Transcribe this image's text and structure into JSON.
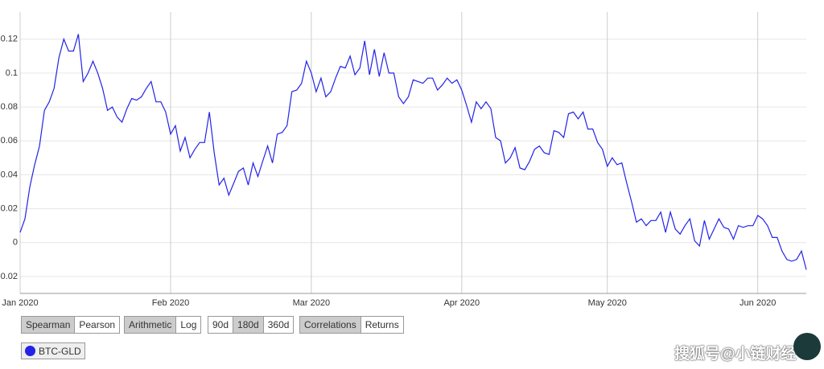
{
  "chart_data": {
    "type": "line",
    "xlim": [
      0,
      162
    ],
    "xticks": [
      {
        "value": 0,
        "label": "Jan 2020"
      },
      {
        "value": 31,
        "label": "Feb 2020"
      },
      {
        "value": 60,
        "label": "Mar 2020"
      },
      {
        "value": 91,
        "label": "Apr 2020"
      },
      {
        "value": 121,
        "label": "May 2020"
      },
      {
        "value": 152,
        "label": "Jun 2020"
      }
    ],
    "ylim": [
      -0.03,
      0.136
    ],
    "yticks": [
      -0.02,
      0,
      0.02,
      0.04,
      0.06,
      0.08,
      0.1,
      0.12
    ],
    "grid": true,
    "series": [
      {
        "name": "BTC-GLD",
        "color": "#2323e6",
        "values": [
          0.006,
          0.014,
          0.033,
          0.046,
          0.057,
          0.078,
          0.083,
          0.091,
          0.109,
          0.12,
          0.113,
          0.113,
          0.123,
          0.095,
          0.1,
          0.107,
          0.1,
          0.091,
          0.078,
          0.08,
          0.074,
          0.071,
          0.079,
          0.085,
          0.084,
          0.086,
          0.091,
          0.095,
          0.083,
          0.083,
          0.077,
          0.064,
          0.069,
          0.054,
          0.062,
          0.05,
          0.055,
          0.059,
          0.059,
          0.077,
          0.053,
          0.034,
          0.038,
          0.028,
          0.035,
          0.042,
          0.044,
          0.034,
          0.047,
          0.039,
          0.048,
          0.057,
          0.047,
          0.064,
          0.065,
          0.069,
          0.089,
          0.09,
          0.094,
          0.107,
          0.1,
          0.089,
          0.097,
          0.086,
          0.089,
          0.097,
          0.104,
          0.103,
          0.11,
          0.099,
          0.103,
          0.119,
          0.099,
          0.114,
          0.098,
          0.112,
          0.1,
          0.1,
          0.086,
          0.082,
          0.086,
          0.096,
          0.095,
          0.094,
          0.097,
          0.097,
          0.09,
          0.093,
          0.097,
          0.094,
          0.096,
          0.09,
          0.081,
          0.071,
          0.083,
          0.079,
          0.083,
          0.079,
          0.062,
          0.06,
          0.047,
          0.05,
          0.056,
          0.044,
          0.043,
          0.048,
          0.055,
          0.057,
          0.053,
          0.052,
          0.066,
          0.065,
          0.062,
          0.076,
          0.077,
          0.073,
          0.077,
          0.067,
          0.067,
          0.059,
          0.055,
          0.045,
          0.05,
          0.046,
          0.047,
          0.035,
          0.024,
          0.012,
          0.014,
          0.01,
          0.013,
          0.013,
          0.018,
          0.006,
          0.018,
          0.008,
          0.005,
          0.01,
          0.014,
          0.001,
          -0.002,
          0.013,
          0.002,
          0.008,
          0.014,
          0.009,
          0.008,
          0.002,
          0.01,
          0.009,
          0.01,
          0.01,
          0.016,
          0.014,
          0.01,
          0.003,
          0.003,
          -0.005,
          -0.01,
          -0.011,
          -0.01,
          -0.005,
          -0.016
        ]
      }
    ]
  },
  "controls": [
    [
      {
        "label": "Spearman",
        "active": true
      },
      {
        "label": "Pearson",
        "active": false
      }
    ],
    [
      {
        "label": "Arithmetic",
        "active": true
      },
      {
        "label": "Log",
        "active": false
      }
    ],
    [
      {
        "label": "90d",
        "active": false
      },
      {
        "label": "180d",
        "active": true
      },
      {
        "label": "360d",
        "active": false
      }
    ],
    [
      {
        "label": "Correlations",
        "active": true
      },
      {
        "label": "Returns",
        "active": false
      }
    ]
  ],
  "watermark": "搜狐号@小链财经"
}
